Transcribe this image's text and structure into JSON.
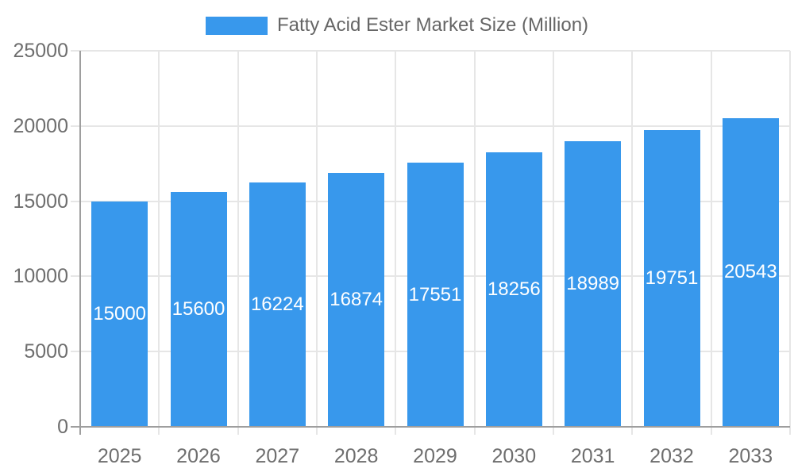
{
  "chart_data": {
    "type": "bar",
    "title": "Fatty Acid Ester Market Size (Million)",
    "legend": {
      "label": "Fatty Acid Ester Market Size (Million)",
      "position": "top"
    },
    "categories": [
      "2025",
      "2026",
      "2027",
      "2028",
      "2029",
      "2030",
      "2031",
      "2032",
      "2033"
    ],
    "series": [
      {
        "name": "Fatty Acid Ester Market Size (Million)",
        "values": [
          15000,
          15600,
          16224,
          16874,
          17551,
          18256,
          18989,
          19751,
          20543
        ]
      }
    ],
    "value_labels": [
      "15000",
      "15600",
      "16224",
      "16874",
      "17551",
      "18256",
      "18989",
      "19751",
      "20543"
    ],
    "xlabel": "",
    "ylabel": "",
    "ylim": [
      0,
      25000
    ],
    "yticks": [
      0,
      5000,
      10000,
      15000,
      20000,
      25000
    ],
    "ytick_labels": [
      "0",
      "5000",
      "10000",
      "15000",
      "20000",
      "25000"
    ],
    "grid": true,
    "colors": {
      "bar": "#3898ec",
      "value_label_text": "#ffffff",
      "axis_text": "#6e6e6e",
      "legend_text": "#666666",
      "gridline": "#e6e6e6",
      "axis_line": "#9e9e9e",
      "background": "#ffffff"
    }
  }
}
